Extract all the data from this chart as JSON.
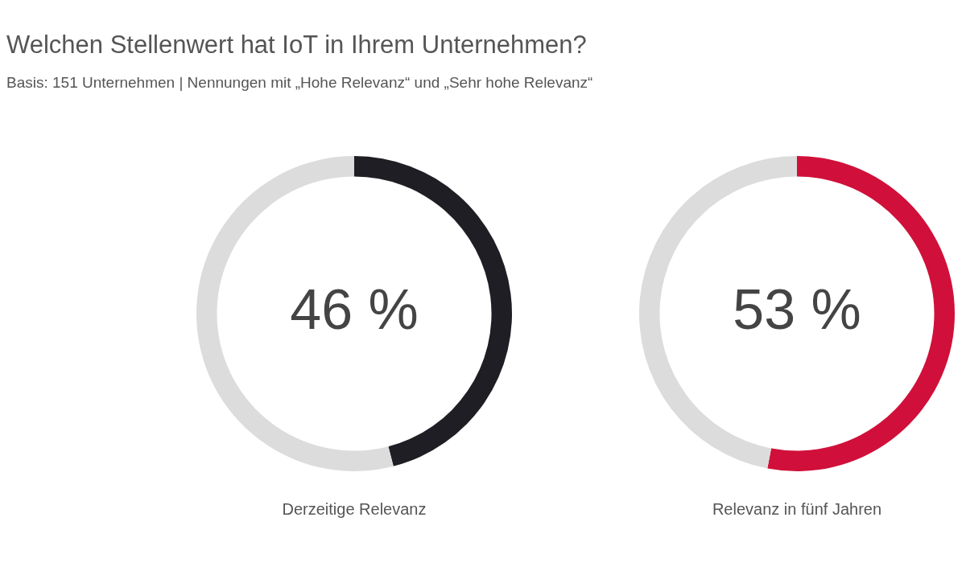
{
  "chart_data": [
    {
      "type": "donut",
      "title": "Welchen Stellenwert hat IoT in Ihrem Unternehmen?",
      "subtitle": "Basis: 151 Unternehmen | Nennungen mit „Hohe Relevanz“ und „Sehr hohe Relevanz“",
      "categories": [
        null,
        null
      ],
      "values": [
        46,
        54
      ],
      "colors": [
        "#1e1e24",
        "#dcdcdc"
      ],
      "value_labels": [
        "46 %",
        null
      ],
      "xlabel": "Derzeitige Relevanz"
    },
    {
      "type": "donut",
      "categories": [
        null,
        null
      ],
      "values": [
        53,
        47
      ],
      "colors": [
        "#d0103a",
        "#dcdcdc"
      ],
      "value_labels": [
        "53 %",
        null
      ],
      "xlabel": "Relevanz in fünf Jahren"
    }
  ]
}
